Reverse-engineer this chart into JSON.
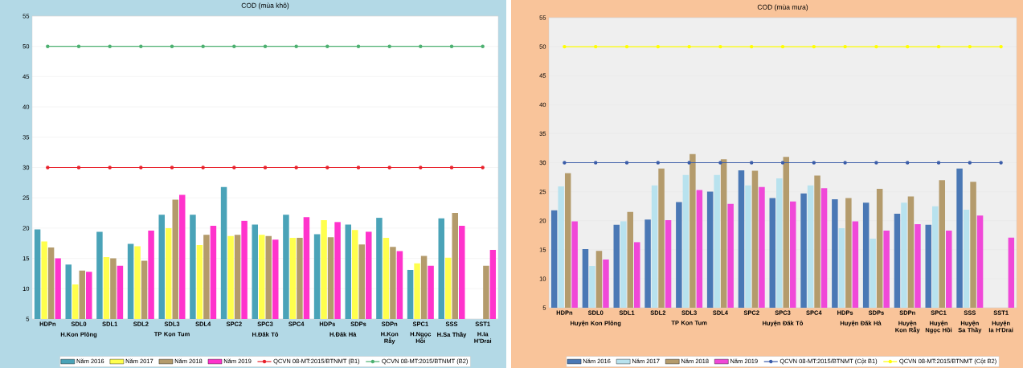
{
  "chart_data": [
    {
      "type": "bar",
      "title": "COD (mùa khô)",
      "categories": [
        "HDPn",
        "SDL0",
        "SDL1",
        "SDL2",
        "SDL3",
        "SDL4",
        "SPC2",
        "SPC3",
        "SPC4",
        "HDPs",
        "SDPs",
        "SDPn",
        "SPC1",
        "SSS",
        "SST1"
      ],
      "series": [
        {
          "name": "Năm 2016",
          "color": "#4aa3b8",
          "values": [
            19.8,
            14.0,
            19.4,
            17.4,
            22.2,
            22.2,
            26.8,
            20.6,
            22.2,
            19.0,
            20.6,
            21.7,
            13.1,
            21.6,
            null
          ]
        },
        {
          "name": "Năm 2017",
          "color": "#ffff4d",
          "values": [
            17.8,
            10.7,
            15.2,
            17.0,
            20.0,
            17.2,
            18.7,
            18.9,
            18.4,
            21.3,
            19.7,
            18.4,
            14.2,
            15.1,
            null
          ]
        },
        {
          "name": "Năm 2018",
          "color": "#b49b6c",
          "values": [
            16.8,
            13.0,
            15.0,
            14.6,
            24.7,
            18.9,
            18.9,
            18.7,
            18.4,
            18.5,
            17.3,
            16.9,
            15.4,
            22.5,
            13.8
          ]
        },
        {
          "name": "Năm 2019",
          "color": "#ff33cc",
          "values": [
            15.0,
            12.8,
            13.8,
            19.6,
            25.5,
            20.4,
            21.2,
            18.1,
            21.8,
            21.0,
            19.4,
            16.2,
            13.8,
            20.4,
            16.4
          ]
        },
        {
          "name": "QCVN 08-MT:2015/BTNMT (B1)",
          "type": "line",
          "marker": "circle",
          "color": "#e8202a",
          "values": [
            30,
            30,
            30,
            30,
            30,
            30,
            30,
            30,
            30,
            30,
            30,
            30,
            30,
            30,
            30
          ]
        },
        {
          "name": "QCVN 08-MT:2015/BTNMT (B2)",
          "type": "line",
          "marker": "circle",
          "color": "#4cb070",
          "values": [
            50,
            50,
            50,
            50,
            50,
            50,
            50,
            50,
            50,
            50,
            50,
            50,
            50,
            50,
            50
          ]
        }
      ],
      "ylim": [
        5,
        55
      ],
      "yticks": [
        5,
        10,
        15,
        20,
        25,
        30,
        35,
        40,
        45,
        50,
        55
      ],
      "grid": "y",
      "legend": "bottom",
      "annotations": [
        "H.Kon Plông",
        "TP Kon Tum",
        "H.Đăk Tô",
        "H.Đăk Hà",
        "H.Kon Rẫy",
        "H.Ngọc Hồi",
        "H.Sa Thầy",
        "H.Ia H'Drai"
      ]
    },
    {
      "type": "bar",
      "title": "COD (mùa mưa)",
      "categories": [
        "HDPn",
        "SDL0",
        "SDL1",
        "SDL2",
        "SDL3",
        "SDL4",
        "SPC2",
        "SPC3",
        "SPC4",
        "HDPs",
        "SDPs",
        "SDPn",
        "SPC1",
        "SSS",
        "SST1"
      ],
      "series": [
        {
          "name": "Năm 2016",
          "color": "#4a78b5",
          "values": [
            21.8,
            15.1,
            19.3,
            20.2,
            23.2,
            25.0,
            28.7,
            23.9,
            24.7,
            23.7,
            23.1,
            21.2,
            19.3,
            29.0,
            null
          ]
        },
        {
          "name": "Năm 2017",
          "color": "#b8e2ee",
          "values": [
            25.9,
            12.2,
            19.9,
            26.1,
            27.9,
            27.9,
            26.1,
            27.3,
            26.1,
            18.7,
            16.9,
            23.1,
            22.5,
            21.9,
            null
          ]
        },
        {
          "name": "Năm 2018",
          "color": "#b49b6c",
          "values": [
            28.2,
            14.8,
            21.5,
            29.0,
            31.5,
            30.6,
            28.6,
            31.0,
            27.8,
            23.9,
            25.5,
            24.2,
            27.0,
            26.7,
            null
          ]
        },
        {
          "name": "Năm 2019",
          "color": "#f048d8",
          "values": [
            19.9,
            13.3,
            16.3,
            20.1,
            25.3,
            22.9,
            25.8,
            23.3,
            25.6,
            19.9,
            18.3,
            19.4,
            18.3,
            20.9,
            17.1
          ]
        },
        {
          "name": "QCVN 08-MT:2015/BTNMT (Cột B1)",
          "type": "line",
          "marker": "circle",
          "color": "#3a5ca8",
          "values": [
            30,
            30,
            30,
            30,
            30,
            30,
            30,
            30,
            30,
            30,
            30,
            30,
            30,
            30,
            30
          ]
        },
        {
          "name": "QCVN 08-MT:2015/BTNMT (Cột B2)",
          "type": "line",
          "marker": "circle",
          "color": "#ffff00",
          "values": [
            50,
            50,
            50,
            50,
            50,
            50,
            50,
            50,
            50,
            50,
            50,
            50,
            50,
            50,
            50
          ]
        }
      ],
      "ylim": [
        5,
        55
      ],
      "yticks": [
        5,
        10,
        15,
        20,
        25,
        30,
        35,
        40,
        45,
        50,
        55
      ],
      "grid": "y",
      "legend": "bottom",
      "annotations": [
        "Huyện Kon Plông",
        "TP Kon Tum",
        "Huyện Đăk Tô",
        "Huyện Đăk Hà",
        "Huyện Kon Rẫy",
        "Huyện Ngọc Hồi",
        "Huyện Sa Thầy",
        "Huyện Ia H'Drai"
      ]
    }
  ]
}
